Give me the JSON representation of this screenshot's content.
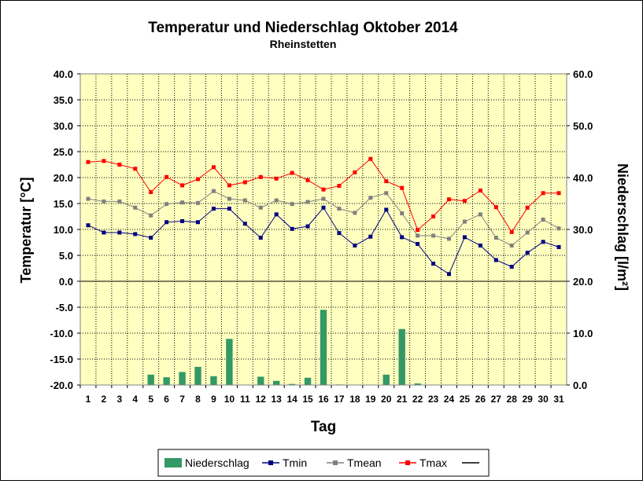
{
  "chart_data": {
    "type": "line",
    "title": "Temperatur und Niederschlag Oktober 2014",
    "subtitle": "Rheinstetten",
    "xlabel": "Tag",
    "ylabel_left": "Temperatur [°C]",
    "ylabel_right": "Niederschlag [l/m²]",
    "categories": [
      "1",
      "2",
      "3",
      "4",
      "5",
      "6",
      "7",
      "8",
      "9",
      "10",
      "11",
      "12",
      "13",
      "14",
      "15",
      "16",
      "17",
      "18",
      "19",
      "20",
      "21",
      "22",
      "23",
      "24",
      "25",
      "26",
      "27",
      "28",
      "29",
      "30",
      "31"
    ],
    "ylim_left": [
      -20,
      40
    ],
    "yticks_left": [
      "40.0",
      "35.0",
      "30.0",
      "25.0",
      "20.0",
      "15.0",
      "10.0",
      "5.0",
      "0.0",
      "-5.0",
      "-10.0",
      "-15.0",
      "-20.0"
    ],
    "ylim_right": [
      0,
      60
    ],
    "yticks_right": [
      "60.0",
      "50.0",
      "40.0",
      "30.0",
      "20.0",
      "10.0",
      "0.0"
    ],
    "grid": true,
    "background": "#ffffc0",
    "series": [
      {
        "name": "Niederschlag",
        "axis": "right",
        "kind": "bar",
        "color": "#339966",
        "values": [
          0,
          0,
          0,
          0,
          2.0,
          1.5,
          2.5,
          3.5,
          1.7,
          8.9,
          0,
          1.6,
          0.8,
          0.2,
          1.4,
          14.5,
          0.1,
          0,
          0,
          2.0,
          10.8,
          0.3,
          0,
          0,
          0,
          0,
          0,
          0,
          0,
          0,
          0
        ]
      },
      {
        "name": "Tmin",
        "axis": "left",
        "kind": "line",
        "color": "#000080",
        "values": [
          10.8,
          9.4,
          9.4,
          9.1,
          8.4,
          11.4,
          11.6,
          11.4,
          14.0,
          14.0,
          11.1,
          8.4,
          12.9,
          10.1,
          10.6,
          14.2,
          9.3,
          6.9,
          8.6,
          13.8,
          8.5,
          7.2,
          3.4,
          1.4,
          8.5,
          6.9,
          4.1,
          2.8,
          5.5,
          7.6,
          6.6
        ]
      },
      {
        "name": "Tmean",
        "axis": "left",
        "kind": "line",
        "color": "#808080",
        "values": [
          15.9,
          15.4,
          15.4,
          14.2,
          12.7,
          14.9,
          15.2,
          15.1,
          17.4,
          15.9,
          15.6,
          14.2,
          15.6,
          14.9,
          15.3,
          15.9,
          14.0,
          13.2,
          16.1,
          17.0,
          13.1,
          8.8,
          8.8,
          8.2,
          11.5,
          12.9,
          8.4,
          6.9,
          9.4,
          11.9,
          10.2
        ]
      },
      {
        "name": "Tmax",
        "axis": "left",
        "kind": "line",
        "color": "#ff0000",
        "values": [
          23.0,
          23.2,
          22.5,
          21.7,
          17.2,
          20.1,
          18.5,
          19.7,
          22.0,
          18.5,
          19.1,
          20.1,
          19.8,
          20.9,
          19.5,
          17.7,
          18.4,
          21.0,
          23.6,
          19.3,
          18.0,
          9.9,
          12.5,
          15.8,
          15.5,
          17.5,
          14.3,
          9.5,
          14.2,
          17.0,
          17.0
        ]
      }
    ],
    "legend": {
      "placement": "bottom",
      "entries": [
        "Niederschlag",
        "Tmin",
        "Tmean",
        "Tmax",
        ""
      ]
    }
  }
}
